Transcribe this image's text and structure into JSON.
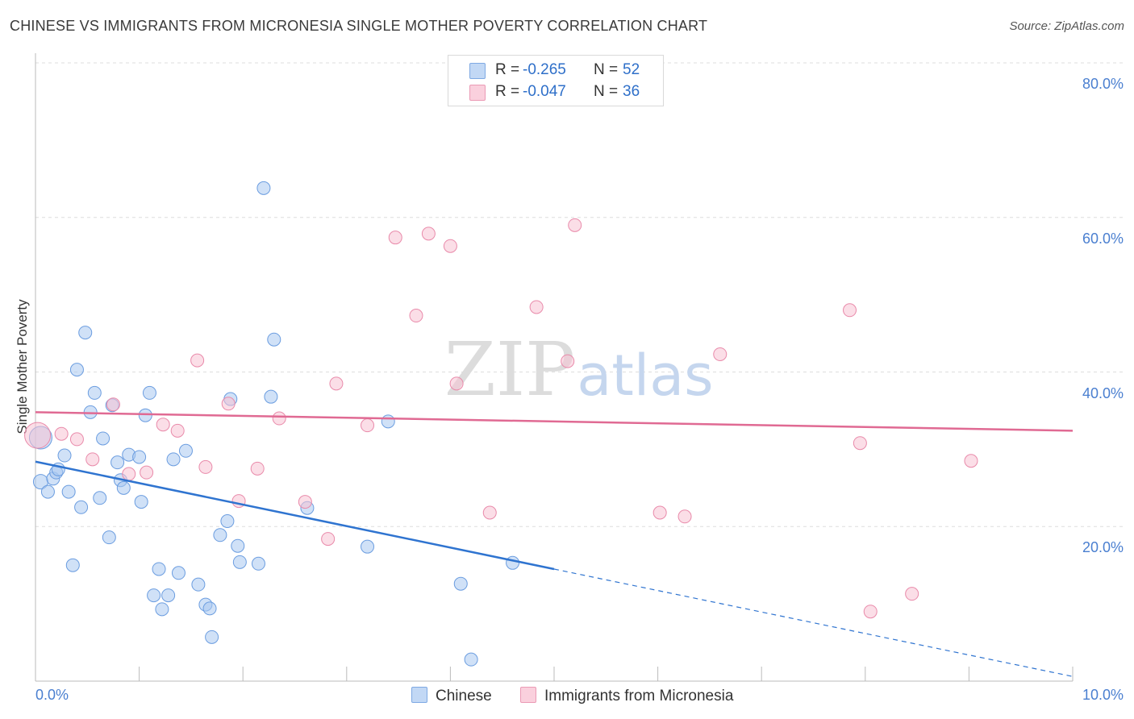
{
  "header": {
    "title": "CHINESE VS IMMIGRANTS FROM MICRONESIA SINGLE MOTHER POVERTY CORRELATION CHART",
    "source": "Source: ZipAtlas.com"
  },
  "watermark": {
    "zip": "ZIP",
    "atlas": "atlas"
  },
  "legend_top": {
    "r_label": "R =",
    "n_label": "N =",
    "rows": [
      {
        "r": "-0.265",
        "n": "52"
      },
      {
        "r": "-0.047",
        "n": "36"
      }
    ]
  },
  "chart_data": {
    "type": "scatter",
    "title": "CHINESE VS IMMIGRANTS FROM MICRONESIA SINGLE MOTHER POVERTY CORRELATION CHART",
    "xlabel": "",
    "ylabel": "Single Mother Poverty",
    "xlim": [
      0,
      10
    ],
    "ylim": [
      0,
      80
    ],
    "x_tick_labels": [
      "0.0%",
      "10.0%"
    ],
    "y_ticks": [
      20,
      40,
      60,
      80
    ],
    "y_tick_labels": [
      "20.0%",
      "40.0%",
      "60.0%",
      "80.0%"
    ],
    "grid": true,
    "legend": "bottom",
    "series": [
      {
        "name": "Chinese",
        "color": "#a9c8f0",
        "stroke": "#6b9de0",
        "trend_color": "#2f74d0",
        "r": -0.265,
        "n": 52,
        "trend": {
          "x0": 0.0,
          "y0": 28.4,
          "x1": 5.0,
          "y1": 14.5,
          "dashed_to": {
            "x": 10.0,
            "y": 0.6
          }
        },
        "points": [
          [
            0.05,
            31.5,
            14
          ],
          [
            0.05,
            25.8,
            9
          ],
          [
            0.12,
            24.5,
            8
          ],
          [
            0.17,
            26.2,
            8
          ],
          [
            0.2,
            27.0,
            8
          ],
          [
            0.22,
            27.4,
            8
          ],
          [
            0.28,
            29.2,
            8
          ],
          [
            0.32,
            24.5,
            8
          ],
          [
            0.36,
            15.0,
            8
          ],
          [
            0.4,
            40.3,
            8
          ],
          [
            0.44,
            22.5,
            8
          ],
          [
            0.48,
            45.1,
            8
          ],
          [
            0.53,
            34.8,
            8
          ],
          [
            0.57,
            37.3,
            8
          ],
          [
            0.62,
            23.7,
            8
          ],
          [
            0.65,
            31.4,
            8
          ],
          [
            0.71,
            18.6,
            8
          ],
          [
            0.74,
            35.7,
            8
          ],
          [
            0.79,
            28.3,
            8
          ],
          [
            0.82,
            26.0,
            8
          ],
          [
            0.85,
            25.0,
            8
          ],
          [
            0.9,
            29.3,
            8
          ],
          [
            1.0,
            29.0,
            8
          ],
          [
            1.02,
            23.2,
            8
          ],
          [
            1.06,
            34.4,
            8
          ],
          [
            1.1,
            37.3,
            8
          ],
          [
            1.14,
            11.1,
            8
          ],
          [
            1.19,
            14.5,
            8
          ],
          [
            1.22,
            9.3,
            8
          ],
          [
            1.28,
            11.1,
            8
          ],
          [
            1.33,
            28.7,
            8
          ],
          [
            1.38,
            14.0,
            8
          ],
          [
            1.45,
            29.8,
            8
          ],
          [
            1.57,
            12.5,
            8
          ],
          [
            1.64,
            9.9,
            8
          ],
          [
            1.68,
            9.4,
            8
          ],
          [
            1.7,
            5.7,
            8
          ],
          [
            1.78,
            18.9,
            8
          ],
          [
            1.85,
            20.7,
            8
          ],
          [
            1.88,
            36.5,
            8
          ],
          [
            1.95,
            17.5,
            8
          ],
          [
            1.97,
            15.4,
            8
          ],
          [
            2.15,
            15.2,
            8
          ],
          [
            2.2,
            63.8,
            8
          ],
          [
            2.27,
            36.8,
            8
          ],
          [
            2.3,
            44.2,
            8
          ],
          [
            2.62,
            22.4,
            8
          ],
          [
            3.2,
            17.4,
            8
          ],
          [
            3.4,
            33.6,
            8
          ],
          [
            4.1,
            12.6,
            8
          ],
          [
            4.2,
            2.8,
            8
          ],
          [
            4.6,
            15.3,
            8
          ]
        ]
      },
      {
        "name": "Immigrants from Micronesia",
        "color": "#f7c3d3",
        "stroke": "#e98aaa",
        "trend_color": "#e06a93",
        "r": -0.047,
        "n": 36,
        "trend": {
          "x0": 0.0,
          "y0": 34.8,
          "x1": 10.0,
          "y1": 32.4
        },
        "points": [
          [
            0.02,
            31.8,
            16
          ],
          [
            0.25,
            32.0,
            8
          ],
          [
            0.4,
            31.3,
            8
          ],
          [
            0.55,
            28.7,
            8
          ],
          [
            0.75,
            35.8,
            8
          ],
          [
            0.9,
            26.8,
            8
          ],
          [
            1.07,
            27.0,
            8
          ],
          [
            1.23,
            33.2,
            8
          ],
          [
            1.37,
            32.4,
            8
          ],
          [
            1.56,
            41.5,
            8
          ],
          [
            1.64,
            27.7,
            8
          ],
          [
            1.86,
            35.9,
            8
          ],
          [
            1.96,
            23.3,
            8
          ],
          [
            2.14,
            27.5,
            8
          ],
          [
            2.35,
            34.0,
            8
          ],
          [
            2.6,
            23.2,
            8
          ],
          [
            2.82,
            18.4,
            8
          ],
          [
            2.9,
            38.5,
            8
          ],
          [
            3.2,
            33.1,
            8
          ],
          [
            3.47,
            57.4,
            8
          ],
          [
            3.67,
            47.3,
            8
          ],
          [
            3.79,
            57.9,
            8
          ],
          [
            4.0,
            56.3,
            8
          ],
          [
            4.06,
            38.5,
            8
          ],
          [
            4.38,
            21.8,
            8
          ],
          [
            4.83,
            48.4,
            8
          ],
          [
            5.13,
            41.4,
            8
          ],
          [
            5.2,
            59.0,
            8
          ],
          [
            6.02,
            21.8,
            8
          ],
          [
            6.26,
            21.3,
            8
          ],
          [
            6.6,
            42.3,
            8
          ],
          [
            7.85,
            48.0,
            8
          ],
          [
            7.95,
            30.8,
            8
          ],
          [
            8.05,
            9.0,
            8
          ],
          [
            8.45,
            11.3,
            8
          ],
          [
            9.02,
            28.5,
            8
          ]
        ]
      }
    ]
  }
}
